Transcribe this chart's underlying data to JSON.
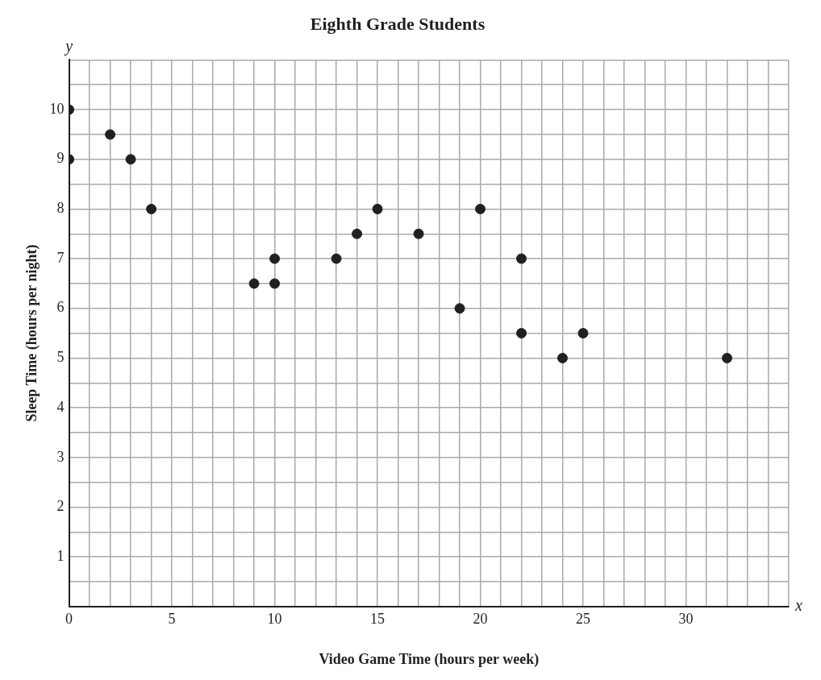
{
  "chart_data": {
    "type": "scatter",
    "title": "Eighth Grade Students",
    "xlabel": "Video Game Time (hours per week)",
    "ylabel": "Sleep Time (hours per night)",
    "annotations": [
      "x",
      "y"
    ],
    "series": [
      {
        "color": "#231f20",
        "x": [
          0,
          0,
          2,
          3,
          4,
          9,
          10,
          10,
          13,
          14,
          15,
          17,
          19,
          20,
          22,
          22,
          24,
          25,
          32
        ],
        "values": [
          10,
          9,
          9.5,
          9,
          8,
          6.5,
          7,
          6.5,
          7,
          7.5,
          8,
          7.5,
          6,
          8,
          7,
          5.5,
          5,
          5.5,
          5
        ]
      }
    ],
    "marker": "circle",
    "grid": true,
    "legend": false,
    "xlim": [
      0,
      35
    ],
    "ylim": [
      0,
      11
    ],
    "xticks": [
      0,
      {
        "value": 1,
        "label": null
      },
      {
        "value": 2,
        "label": null
      },
      {
        "value": 3,
        "label": null
      },
      {
        "value": 4,
        "label": null
      },
      5,
      {
        "value": 6,
        "label": null
      },
      {
        "value": 7,
        "label": null
      },
      {
        "value": 8,
        "label": null
      },
      {
        "value": 9,
        "label": null
      },
      10,
      {
        "value": 11,
        "label": null
      },
      {
        "value": 12,
        "label": null
      },
      {
        "value": 13,
        "label": null
      },
      {
        "value": 14,
        "label": null
      },
      15,
      {
        "value": 16,
        "label": null
      },
      {
        "value": 17,
        "label": null
      },
      {
        "value": 18,
        "label": null
      },
      {
        "value": 19,
        "label": null
      },
      20,
      {
        "value": 21,
        "label": null
      },
      {
        "value": 22,
        "label": null
      },
      {
        "value": 23,
        "label": null
      },
      {
        "value": 24,
        "label": null
      },
      25,
      {
        "value": 26,
        "label": null
      },
      {
        "value": 27,
        "label": null
      },
      {
        "value": 28,
        "label": null
      },
      {
        "value": 29,
        "label": null
      },
      30,
      {
        "value": 31,
        "label": null
      },
      {
        "value": 32,
        "label": null
      },
      {
        "value": 33,
        "label": null
      },
      {
        "value": 34,
        "label": null
      },
      {
        "value": 35,
        "label": null
      }
    ],
    "yticks": [
      {
        "value": 0,
        "label": null
      },
      {
        "value": 0.5,
        "label": null
      },
      1,
      {
        "value": 1.5,
        "label": null
      },
      2,
      {
        "value": 2.5,
        "label": null
      },
      3,
      {
        "value": 3.5,
        "label": null
      },
      4,
      {
        "value": 4.5,
        "label": null
      },
      5,
      {
        "value": 5.5,
        "label": null
      },
      6,
      {
        "value": 6.5,
        "label": null
      },
      7,
      {
        "value": 7.5,
        "label": null
      },
      8,
      {
        "value": 8.5,
        "label": null
      },
      9,
      {
        "value": 9.5,
        "label": null
      },
      10,
      {
        "value": 10.5,
        "label": null
      },
      {
        "value": 11,
        "label": null
      }
    ]
  }
}
